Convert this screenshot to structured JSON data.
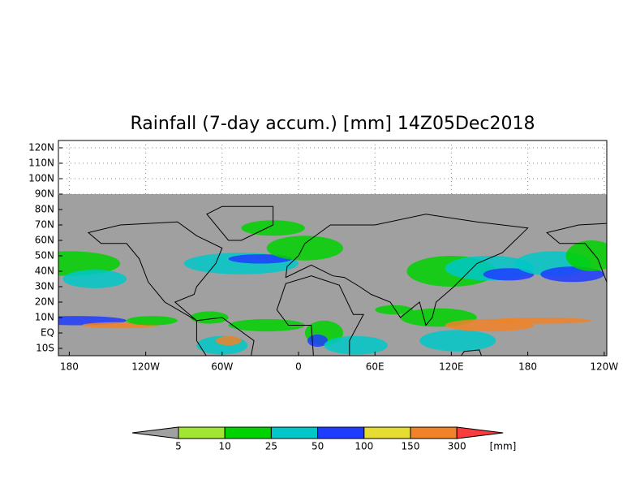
{
  "title": "Rainfall (7-day accum.) [mm] 14Z05Dec2018",
  "lat_labels": [
    "120N",
    "110N",
    "100N",
    "90N",
    "80N",
    "70N",
    "60N",
    "50N",
    "40N",
    "30N",
    "20N",
    "10N",
    "EQ",
    "10S"
  ],
  "lon_labels": [
    "180",
    "120W",
    "60W",
    "0",
    "60E",
    "120E",
    "180",
    "120W"
  ],
  "colorbar": {
    "labels": [
      "5",
      "10",
      "25",
      "50",
      "100",
      "150",
      "300"
    ],
    "unit": "[mm]",
    "colors": [
      "#a0a0a0",
      "#a0e632",
      "#00d200",
      "#00c8c8",
      "#1e3cff",
      "#e6dc32",
      "#f08228",
      "#fa3c3c"
    ]
  }
}
